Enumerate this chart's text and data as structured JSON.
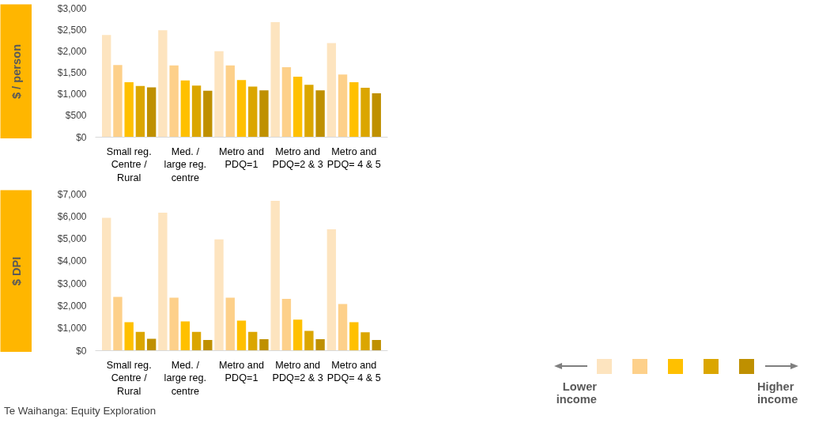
{
  "chart_data": [
    {
      "type": "bar",
      "ylabel": "$ / person",
      "categories": [
        "Small reg. Centre / Rural",
        "Med. / large reg. centre",
        "Metro and PDQ=1",
        "Metro and PDQ=2 & 3",
        "Metro and PDQ= 4 & 5"
      ],
      "series": [
        {
          "color": "#fde4bf",
          "values": [
            2380,
            2490,
            2000,
            2680,
            2190
          ]
        },
        {
          "color": "#fdd08a",
          "values": [
            1680,
            1670,
            1670,
            1630,
            1460
          ]
        },
        {
          "color": "#ffc000",
          "values": [
            1280,
            1320,
            1330,
            1410,
            1280
          ]
        },
        {
          "color": "#dba600",
          "values": [
            1190,
            1200,
            1180,
            1220,
            1150
          ]
        },
        {
          "color": "#bf9000",
          "values": [
            1160,
            1080,
            1090,
            1090,
            1020
          ]
        }
      ],
      "ylim": [
        0,
        3000
      ],
      "yticks": [
        {
          "value": 0,
          "label": "$0"
        },
        {
          "value": 500,
          "label": "$500"
        },
        {
          "value": 1000,
          "label": "$1,000"
        },
        {
          "value": 1500,
          "label": "$1,500"
        },
        {
          "value": 2000,
          "label": "$2,000"
        },
        {
          "value": 2500,
          "label": "$2,500"
        },
        {
          "value": 3000,
          "label": "$3,000"
        }
      ],
      "grid": false
    },
    {
      "type": "bar",
      "ylabel": "$ DPI",
      "categories": [
        "Small reg. Centre / Rural",
        "Med. / large reg. centre",
        "Metro and PDQ=1",
        "Metro and PDQ=2 & 3",
        "Metro and PDQ= 4 & 5"
      ],
      "series": [
        {
          "color": "#fde4bf",
          "values": [
            5940,
            6170,
            4980,
            6700,
            5430
          ]
        },
        {
          "color": "#fdd08a",
          "values": [
            2400,
            2370,
            2370,
            2320,
            2090
          ]
        },
        {
          "color": "#ffc000",
          "values": [
            1270,
            1310,
            1340,
            1390,
            1270
          ]
        },
        {
          "color": "#dba600",
          "values": [
            840,
            840,
            840,
            880,
            820
          ]
        },
        {
          "color": "#bf9000",
          "values": [
            530,
            480,
            510,
            510,
            480
          ]
        }
      ],
      "ylim": [
        0,
        7000
      ],
      "yticks": [
        {
          "value": 0,
          "label": "$0"
        },
        {
          "value": 1000,
          "label": "$1,000"
        },
        {
          "value": 2000,
          "label": "$2,000"
        },
        {
          "value": 3000,
          "label": "$3,000"
        },
        {
          "value": 4000,
          "label": "$4,000"
        },
        {
          "value": 5000,
          "label": "$5,000"
        },
        {
          "value": 6000,
          "label": "$6,000"
        },
        {
          "value": 7000,
          "label": "$7,000"
        }
      ],
      "grid": false,
      "annotations": [
        "Lower income",
        "Higher income",
        "Te Waihanga: Equity Exploration"
      ]
    }
  ]
}
